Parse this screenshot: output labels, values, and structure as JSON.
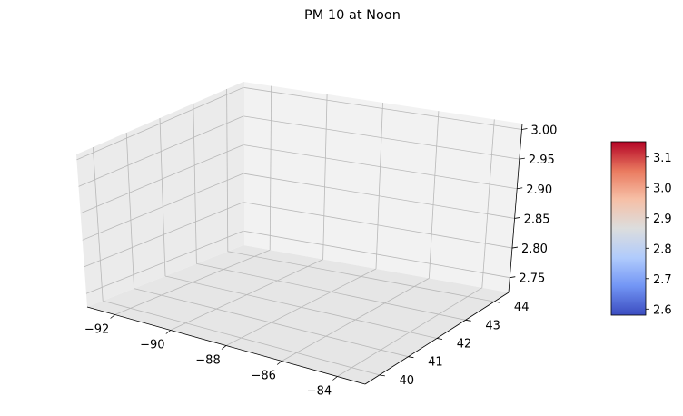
{
  "chart_data": {
    "type": "surface3d",
    "title": "PM 10 at Noon",
    "xlabel": "",
    "ylabel": "",
    "zlabel": "",
    "grid": true,
    "x_ticks": [
      "−92",
      "−90",
      "−88",
      "−86",
      "−84"
    ],
    "y_ticks": [
      "40",
      "41",
      "42",
      "43",
      "44"
    ],
    "z_ticks": [
      "2.75",
      "2.80",
      "2.85",
      "2.90",
      "2.95",
      "3.00"
    ],
    "xlim": [
      -93,
      -83
    ],
    "ylim": [
      39.5,
      44.5
    ],
    "zlim": [
      2.725,
      3.01
    ],
    "surface": [],
    "colorbar": {
      "colormap": "coolwarm",
      "ticks": [
        "2.6",
        "2.7",
        "2.8",
        "2.9",
        "3.0",
        "3.1"
      ],
      "range": [
        2.58,
        3.15
      ],
      "colors": [
        "#3b4cc0",
        "#7396f5",
        "#b0cbfc",
        "#dcdddd",
        "#f6bfa6",
        "#ea7b60",
        "#b40426"
      ]
    }
  }
}
